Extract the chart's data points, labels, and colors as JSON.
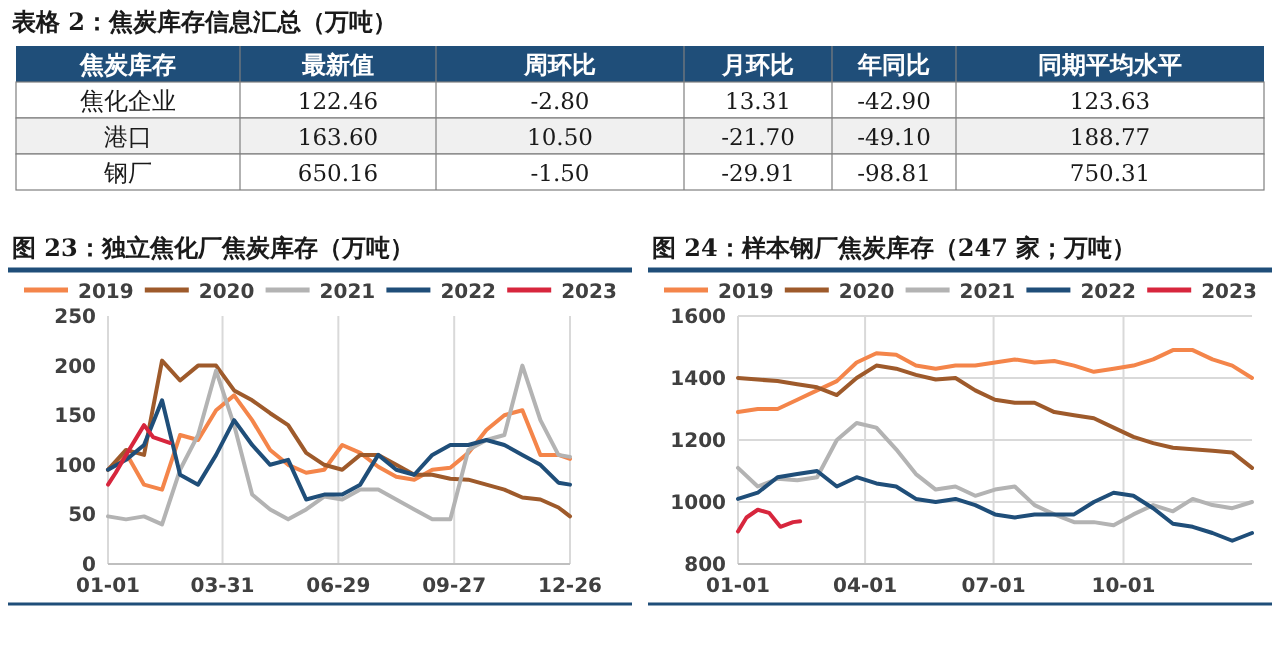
{
  "chart_data": [
    {
      "type": "other",
      "title": "表格 2：焦炭库存信息汇总（万吨）",
      "ylabel": "焦炭库存",
      "categories": [
        "最新值",
        "周环比",
        "月环比",
        "年同比",
        "同期平均水平"
      ],
      "y_categories": [
        "焦化企业",
        "港口",
        "钢厂"
      ],
      "cell_labels": [
        [
          "122.46",
          "-2.80",
          "13.31",
          "-42.90",
          "123.63"
        ],
        [
          "163.60",
          "10.50",
          "-21.70",
          "-49.10",
          "188.77"
        ],
        [
          "650.16",
          "-1.50",
          "-29.91",
          "-98.81",
          "750.31"
        ]
      ]
    },
    {
      "type": "line",
      "title": "图 23：独立焦化厂焦炭库存（万吨）",
      "legend": "top",
      "grid": "x",
      "x": [
        "--01-01",
        "--01-15",
        "--01-29",
        "--02-12",
        "--02-26",
        "--03-12",
        "--03-26",
        "--04-09",
        "--04-23",
        "--05-07",
        "--05-21",
        "--06-04",
        "--06-18",
        "--07-02",
        "--07-16",
        "--07-30",
        "--08-13",
        "--08-27",
        "--09-10",
        "--09-24",
        "--10-08",
        "--10-22",
        "--11-05",
        "--11-19",
        "--12-03",
        "--12-17",
        "--12-26"
      ],
      "xlim": [
        "--01-01",
        "--12-26"
      ],
      "xticks": [
        {
          "value": "--01-01",
          "label": "01-01"
        },
        {
          "value": "--03-31",
          "label": "03-31"
        },
        {
          "value": "--06-29",
          "label": "06-29"
        },
        {
          "value": "--09-27",
          "label": "09-27"
        },
        {
          "value": "--12-26",
          "label": "12-26"
        }
      ],
      "ylim": [
        0,
        250
      ],
      "yticks": [
        0,
        50,
        100,
        150,
        200,
        250
      ],
      "series": [
        {
          "name": "2019",
          "color": "#f4854a",
          "values": [
            95,
            112,
            80,
            75,
            130,
            125,
            155,
            170,
            145,
            115,
            100,
            92,
            95,
            120,
            112,
            98,
            88,
            85,
            95,
            97,
            112,
            135,
            150,
            155,
            110,
            110,
            106
          ]
        },
        {
          "name": "2020",
          "color": "#9e5a2b",
          "values": [
            95,
            115,
            110,
            205,
            185,
            200,
            200,
            175,
            165,
            152,
            140,
            112,
            100,
            95,
            110,
            110,
            100,
            90,
            90,
            86,
            85,
            80,
            75,
            67,
            65,
            57,
            48
          ]
        },
        {
          "name": "2021",
          "color": "#b3b3b3",
          "values": [
            48,
            45,
            48,
            40,
            95,
            130,
            195,
            140,
            70,
            55,
            45,
            55,
            68,
            65,
            75,
            75,
            65,
            55,
            45,
            45,
            115,
            125,
            130,
            200,
            145,
            110,
            108
          ]
        },
        {
          "name": "2022",
          "color": "#1f4e79",
          "values": [
            95,
            105,
            120,
            165,
            90,
            80,
            110,
            145,
            120,
            100,
            105,
            65,
            70,
            70,
            80,
            110,
            95,
            90,
            110,
            120,
            120,
            125,
            120,
            110,
            100,
            82,
            80
          ]
        },
        {
          "name": "2023",
          "color": "#d7263d",
          "x": [
            "--01-01",
            "--01-07",
            "--01-15",
            "--01-29",
            "--02-05",
            "--02-18"
          ],
          "values": [
            80,
            92,
            110,
            140,
            128,
            122
          ]
        }
      ]
    },
    {
      "type": "line",
      "title": "图 24：样本钢厂焦炭库存（247 家；万吨）",
      "legend": "top",
      "grid": true,
      "x": [
        "--01-01",
        "--01-15",
        "--01-29",
        "--02-12",
        "--02-26",
        "--03-12",
        "--03-26",
        "--04-09",
        "--04-23",
        "--05-07",
        "--05-21",
        "--06-04",
        "--06-18",
        "--07-02",
        "--07-16",
        "--07-30",
        "--08-13",
        "--08-27",
        "--09-10",
        "--09-24",
        "--10-08",
        "--10-22",
        "--11-05",
        "--11-19",
        "--12-03",
        "--12-17",
        "--12-31"
      ],
      "xlim": [
        "--01-01",
        "--12-31"
      ],
      "xticks": [
        {
          "value": "--01-01",
          "label": "01-01"
        },
        {
          "value": "--04-01",
          "label": "04-01"
        },
        {
          "value": "--07-01",
          "label": "07-01"
        },
        {
          "value": "--10-01",
          "label": "10-01"
        }
      ],
      "ylim": [
        800,
        1600
      ],
      "yticks": [
        800,
        1000,
        1200,
        1400,
        1600
      ],
      "series": [
        {
          "name": "2019",
          "color": "#f4854a",
          "values": [
            1290,
            1300,
            1300,
            1330,
            1360,
            1390,
            1450,
            1480,
            1475,
            1440,
            1430,
            1440,
            1440,
            1450,
            1460,
            1450,
            1455,
            1440,
            1420,
            1430,
            1440,
            1460,
            1490,
            1490,
            1460,
            1440,
            1400
          ]
        },
        {
          "name": "2020",
          "color": "#9e5a2b",
          "values": [
            1400,
            1395,
            1390,
            1380,
            1370,
            1345,
            1400,
            1440,
            1430,
            1410,
            1395,
            1400,
            1360,
            1330,
            1320,
            1320,
            1290,
            1280,
            1270,
            1240,
            1210,
            1190,
            1175,
            1170,
            1165,
            1160,
            1110
          ]
        },
        {
          "name": "2021",
          "color": "#b3b3b3",
          "values": [
            1110,
            1050,
            1075,
            1070,
            1080,
            1200,
            1255,
            1240,
            1170,
            1090,
            1040,
            1050,
            1020,
            1040,
            1050,
            990,
            960,
            935,
            935,
            925,
            960,
            990,
            970,
            1010,
            990,
            980,
            1000
          ]
        },
        {
          "name": "2022",
          "color": "#1f4e79",
          "values": [
            1010,
            1030,
            1080,
            1090,
            1100,
            1050,
            1080,
            1060,
            1050,
            1010,
            1000,
            1010,
            990,
            960,
            950,
            960,
            960,
            960,
            1000,
            1030,
            1020,
            980,
            930,
            920,
            900,
            875,
            900
          ]
        },
        {
          "name": "2023",
          "color": "#d7263d",
          "x": [
            "--01-01",
            "--01-07",
            "--01-15",
            "--01-23",
            "--01-31",
            "--02-09",
            "--02-14"
          ],
          "values": [
            905,
            950,
            975,
            965,
            920,
            935,
            938
          ]
        }
      ]
    }
  ]
}
